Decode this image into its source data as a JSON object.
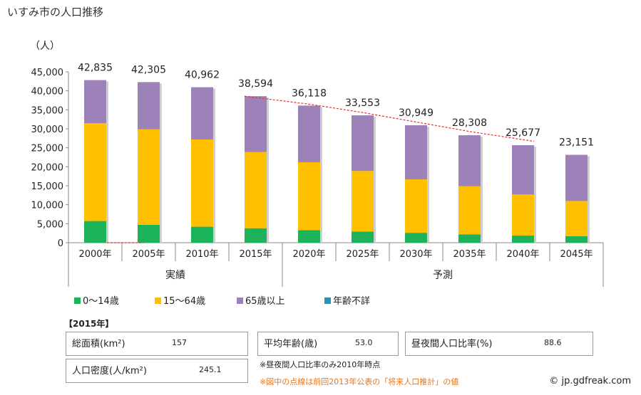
{
  "title": "いすみ市の人口推移",
  "chart_data": {
    "type": "bar",
    "stacked": true,
    "unit_label": "（人）",
    "categories": [
      "2000年",
      "2005年",
      "2010年",
      "2015年",
      "2020年",
      "2025年",
      "2030年",
      "2035年",
      "2040年",
      "2045年"
    ],
    "totals": [
      42835,
      42305,
      40962,
      38594,
      36118,
      33553,
      30949,
      28308,
      25677,
      23151
    ],
    "total_labels": [
      "42,835",
      "42,305",
      "40,962",
      "38,594",
      "36,118",
      "33,553",
      "30,949",
      "28,308",
      "25,677",
      "23,151"
    ],
    "series": [
      {
        "name": "0〜14歳",
        "color": "#1db35a",
        "values": [
          5700,
          4700,
          4200,
          3800,
          3300,
          2900,
          2600,
          2200,
          1900,
          1700
        ]
      },
      {
        "name": "15〜64歳",
        "color": "#ffc000",
        "values": [
          25800,
          25200,
          23000,
          20100,
          17900,
          16000,
          14100,
          12700,
          10800,
          9300
        ]
      },
      {
        "name": "65歳以上",
        "color": "#9d82ba",
        "values": [
          11335,
          12405,
          13762,
          14694,
          14918,
          14653,
          14249,
          13408,
          12977,
          12151
        ]
      },
      {
        "name": "年齢不詳",
        "color": "#2b94b4",
        "values": [
          0,
          0,
          0,
          0,
          0,
          0,
          0,
          0,
          0,
          0
        ]
      }
    ],
    "previous_projection": {
      "color": "#e83030",
      "style": "dotted",
      "categories": [
        "2015年",
        "2020年",
        "2025年",
        "2030年",
        "2035年",
        "2040年"
      ],
      "values": [
        38600,
        36500,
        34300,
        31800,
        29300,
        26700
      ]
    },
    "baseline_marker": {
      "color": "#e83030",
      "style": "dotted",
      "categories": [
        "2000年",
        "2005年"
      ]
    },
    "y_ticks": [
      0,
      5000,
      10000,
      15000,
      20000,
      25000,
      30000,
      35000,
      40000,
      45000
    ],
    "y_tick_labels": [
      "0",
      "5,000",
      "10,000",
      "15,000",
      "20,000",
      "25,000",
      "30,000",
      "35,000",
      "40,000",
      "45,000"
    ],
    "ylim": [
      0,
      45000
    ],
    "groups": [
      {
        "label": "実績",
        "categories": [
          "2000年",
          "2005年",
          "2010年",
          "2015年"
        ]
      },
      {
        "label": "予測",
        "categories": [
          "2020年",
          "2025年",
          "2030年",
          "2035年",
          "2040年",
          "2045年"
        ]
      }
    ],
    "grid": false,
    "legend_position": "bottom"
  },
  "year_tag": "【2015年】",
  "stats": {
    "area_label": "総面積(km²)",
    "area_value": "157",
    "density_label": "人口密度(人/km²)",
    "density_value": "245.1",
    "age_label": "平均年齢(歳)",
    "age_value": "53.0",
    "daynight_label": "昼夜間人口比率(%)",
    "daynight_value": "88.6"
  },
  "notes": {
    "daynight_note": "※昼夜間人口比率のみ2010年時点",
    "dotted_note": "※図中の点線は前回2013年公表の「将来人口推計」の値",
    "dotted_note_color": "#e8751a"
  },
  "copyright": "© jp.gdfreak.com"
}
